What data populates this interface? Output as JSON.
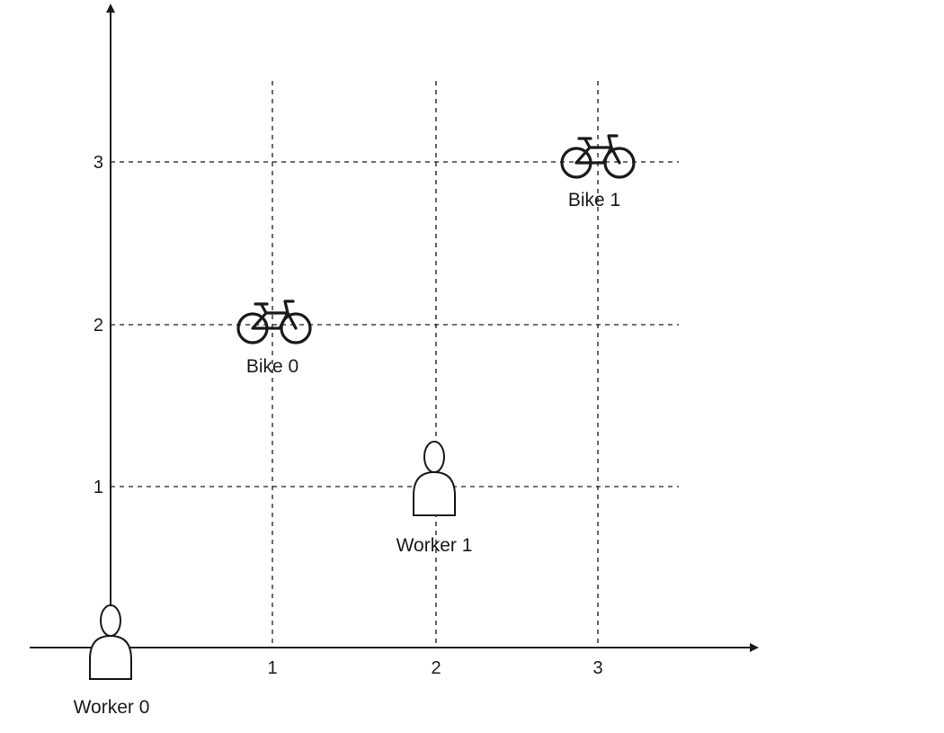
{
  "diagram": {
    "x_ticks": [
      "1",
      "2",
      "3"
    ],
    "y_ticks": [
      "1",
      "2",
      "3"
    ],
    "workers": [
      {
        "label": "Worker 0",
        "x": 0,
        "y": 0,
        "icon": "person-icon"
      },
      {
        "label": "Worker 1",
        "x": 2,
        "y": 1,
        "icon": "person-icon"
      }
    ],
    "bikes": [
      {
        "label": "Bike 0",
        "x": 1,
        "y": 2,
        "icon": "bicycle-icon"
      },
      {
        "label": "Bike 1",
        "x": 3,
        "y": 3,
        "icon": "bicycle-icon"
      }
    ],
    "colors": {
      "line": "#1a1a1a",
      "background": "#ffffff"
    }
  }
}
